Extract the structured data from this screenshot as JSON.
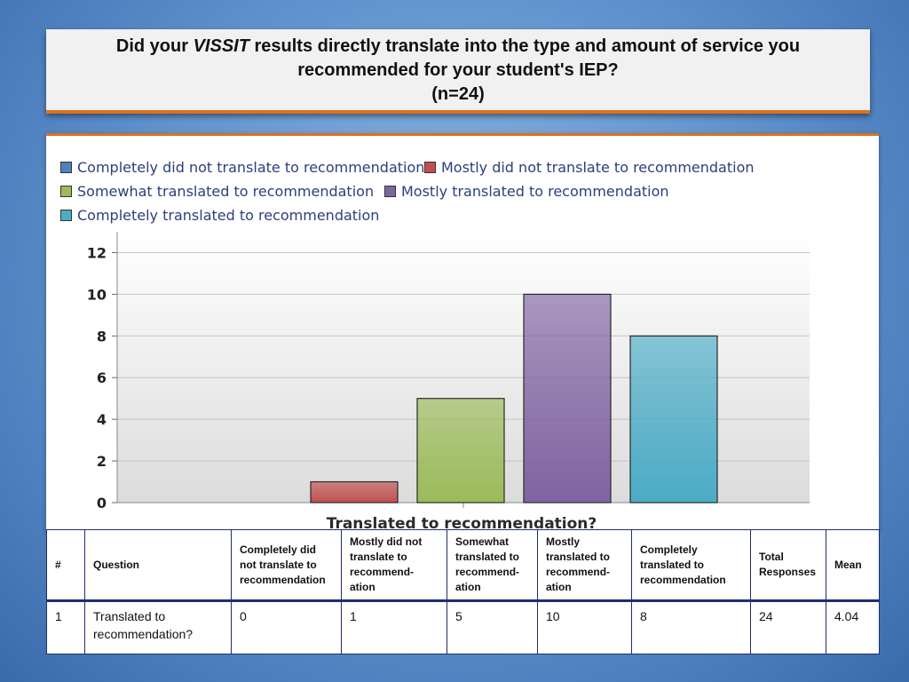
{
  "title": {
    "part1": "Did your ",
    "italic": "VISSIT",
    "part2": " results directly translate into the type and amount of service you",
    "line2": "recommended for your student's IEP?",
    "line3": "(n=24)"
  },
  "legend": [
    {
      "label": "Completely did not translate to recommendation",
      "color": "#4f81bd"
    },
    {
      "label": "Mostly did not translate to recommendation",
      "color": "#c0504d"
    },
    {
      "label": "Somewhat translated to recommendation",
      "color": "#9bbb59"
    },
    {
      "label": "Mostly translated to recommendation",
      "color": "#8064a2"
    },
    {
      "label": "Completely translated to recommendation",
      "color": "#4bacc6"
    }
  ],
  "chart_data": {
    "type": "bar",
    "xlabel": "Translated to recommendation?",
    "ylabel": "",
    "ylim": [
      0,
      13
    ],
    "yticks": [
      "0",
      "2",
      "4",
      "6",
      "8",
      "10",
      "12"
    ],
    "series": [
      {
        "name": "Completely did not translate to recommendation",
        "value": 0,
        "color": "#4f81bd"
      },
      {
        "name": "Mostly did not translate to recommendation",
        "value": 1,
        "color": "#c0504d"
      },
      {
        "name": "Somewhat translated to recommendation",
        "value": 5,
        "color": "#9bbb59"
      },
      {
        "name": "Mostly translated to recommendation",
        "value": 10,
        "color": "#8064a2"
      },
      {
        "name": "Completely translated to recommendation",
        "value": 8,
        "color": "#4bacc6"
      }
    ],
    "legend_position": "top",
    "grid": true
  },
  "table": {
    "headers": [
      "#",
      "Question",
      "Completely did not translate to recommendation",
      "Mostly did not translate to recommend-ation",
      "Somewhat translated to recommend-ation",
      "Mostly translated to recommend-ation",
      "Completely translated to recommendation",
      "Total Responses",
      "Mean"
    ],
    "row": [
      "1",
      "Translated to recommendation?",
      "0",
      "1",
      "5",
      "10",
      "8",
      "24",
      "4.04"
    ]
  }
}
